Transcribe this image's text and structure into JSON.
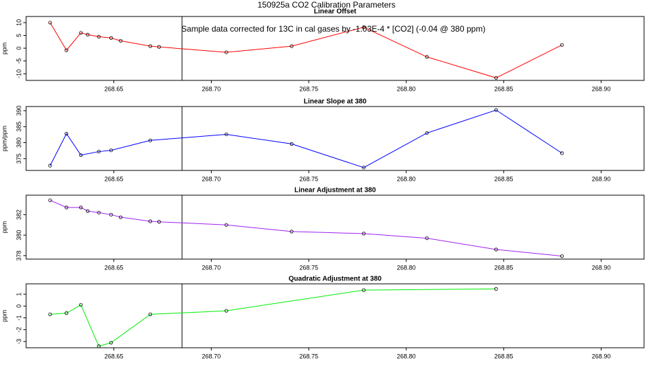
{
  "title": "150925a   CO2 Calibration Parameters",
  "annotation": "Sample data corrected for 13C in cal gases by -1.03E-4 * [CO2] (-0.04 @ 380 ppm)",
  "chart_data": [
    {
      "type": "line",
      "title": "Linear Offset",
      "ylabel": "ppm",
      "color": "#ff0000",
      "vline": 268.685,
      "x": [
        268.6173,
        268.6257,
        268.6331,
        268.6366,
        268.6423,
        268.6486,
        268.6535,
        268.6687,
        268.6732,
        268.7077,
        268.7412,
        268.7782,
        268.8106,
        268.8461,
        268.8799
      ],
      "values": [
        10.0,
        -0.8,
        6.0,
        5.3,
        4.5,
        4.0,
        2.9,
        0.8,
        0.5,
        -1.6,
        0.8,
        8.2,
        -3.4,
        -11.6,
        1.3
      ],
      "xlim": [
        268.605,
        268.922
      ],
      "ylim": [
        -12.6,
        12.4
      ],
      "xticks": [
        268.65,
        {
          "value": 268.7,
          "label": "268.70"
        },
        268.75,
        {
          "value": 268.8,
          "label": "268.80"
        },
        268.85,
        {
          "value": 268.9,
          "label": "268.90"
        }
      ],
      "yticks": [
        10,
        5,
        0,
        -5,
        -10
      ]
    },
    {
      "type": "line",
      "title": "Linear Slope at 380",
      "ylabel": "ppm/ppm",
      "color": "#0000ff",
      "vline": 268.685,
      "x": [
        268.6173,
        268.6257,
        268.6331,
        268.6423,
        268.6486,
        268.6687,
        268.7077,
        268.7412,
        268.7782,
        268.8106,
        268.8461,
        268.8799
      ],
      "values": [
        372.8,
        382.8,
        376.1,
        377.2,
        377.6,
        380.7,
        382.6,
        379.6,
        372.2,
        383.0,
        390.2,
        376.7
      ],
      "xlim": [
        268.605,
        268.922
      ],
      "ylim": [
        371.3,
        391.3
      ],
      "xticks": [
        268.65,
        {
          "value": 268.7,
          "label": "268.70"
        },
        268.75,
        {
          "value": 268.8,
          "label": "268.80"
        },
        268.85,
        {
          "value": 268.9,
          "label": "268.90"
        }
      ],
      "yticks": [
        390,
        385,
        380,
        375
      ]
    },
    {
      "type": "line",
      "title": "Linear Adjustment at 380",
      "ylabel": "ppm",
      "color": "#a020f0",
      "vline": 268.685,
      "x": [
        268.6173,
        268.6257,
        268.6331,
        268.6366,
        268.6423,
        268.6486,
        268.6535,
        268.6687,
        268.6732,
        268.7077,
        268.7412,
        268.7782,
        268.8106,
        268.8461,
        268.8799
      ],
      "values": [
        383.4,
        382.7,
        382.7,
        382.35,
        382.2,
        382.0,
        381.75,
        381.35,
        381.3,
        381.0,
        380.35,
        380.15,
        379.7,
        378.6,
        377.95
      ],
      "xlim": [
        268.605,
        268.922
      ],
      "ylim": [
        377.66,
        383.9
      ],
      "xticks": [
        268.65,
        {
          "value": 268.7,
          "label": "268.70"
        },
        268.75,
        {
          "value": 268.8,
          "label": "268.80"
        },
        268.85,
        {
          "value": 268.9,
          "label": "268.90"
        }
      ],
      "yticks": [
        382,
        380,
        378
      ]
    },
    {
      "type": "line",
      "title": "Quadratic Adjustment at 380",
      "ylabel": "ppm",
      "color": "#00ee00",
      "vline": 268.685,
      "x": [
        268.6173,
        268.6257,
        268.6331,
        268.6423,
        268.6486,
        268.6687,
        268.7077,
        268.7782,
        268.8461
      ],
      "values": [
        -0.7,
        -0.6,
        0.1,
        -3.4,
        -3.1,
        -0.7,
        -0.4,
        1.35,
        1.45
      ],
      "xlim": [
        268.605,
        268.922
      ],
      "ylim": [
        -3.53,
        1.88
      ],
      "xticks": [
        268.65,
        {
          "value": 268.7,
          "label": "268.70"
        },
        268.75,
        {
          "value": 268.8,
          "label": "268.80"
        },
        268.85,
        {
          "value": 268.9,
          "label": "268.90"
        }
      ],
      "yticks": [
        1,
        0,
        -1,
        -2,
        -3
      ]
    }
  ]
}
